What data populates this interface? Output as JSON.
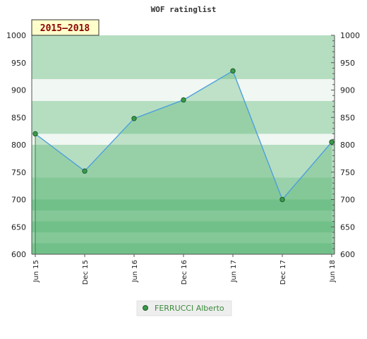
{
  "chart_data": {
    "type": "area",
    "title": "WOF ratinglist",
    "badge": "2015–2018",
    "x_labels": [
      "Jun 15",
      "Dec 15",
      "Jun 16",
      "Dec 16",
      "Jun 17",
      "Dec 17",
      "Jun 18"
    ],
    "series": [
      {
        "name": "FERRUCCI Alberto",
        "values": [
          820,
          752,
          848,
          882,
          935,
          700,
          805
        ]
      }
    ],
    "ylim": [
      600,
      1000
    ],
    "y_ticks": [
      600,
      650,
      700,
      750,
      800,
      850,
      900,
      950,
      1000
    ],
    "y_axis_sides": [
      "left",
      "right"
    ],
    "grid": "horizontal bands",
    "legend_position": "bottom-center",
    "colors": {
      "band_dark": "#7cc593",
      "band_mid": "#99d1aa",
      "band_light": "#b5dec1",
      "band_pale": "#f1f7f2",
      "line": "#4d9fdd",
      "area": "#5fb878",
      "marker": "#3a9a4a",
      "badge_fill": "#ffffcc"
    }
  }
}
